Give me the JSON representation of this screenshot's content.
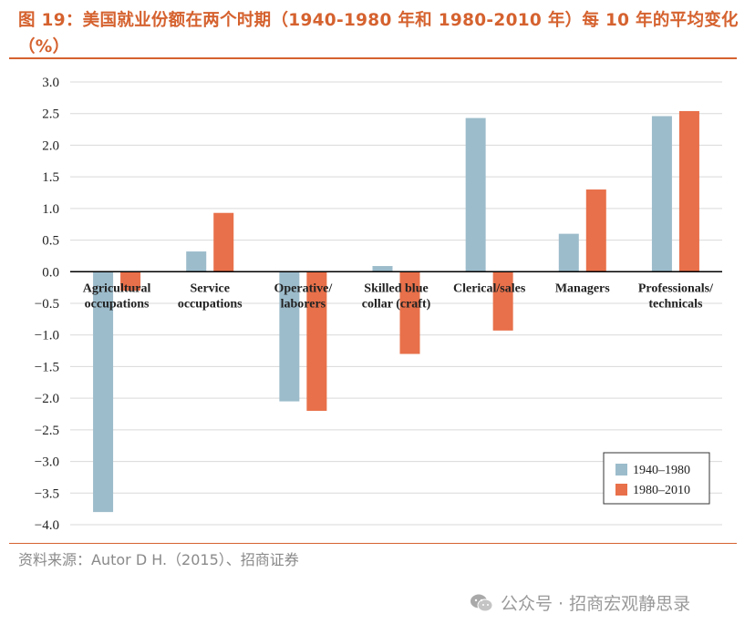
{
  "header": {
    "title": "图 19：美国就业份额在两个时期（1940-1980 年和 1980-2010 年）每 10 年的平均变化（%）"
  },
  "source": "资料来源：Autor D H.（2015）、招商证券",
  "footer": "公众号 · 招商宏观静思录",
  "colors": {
    "accent": "#d5622f",
    "series1": "#9cbccb",
    "series2": "#e8704a",
    "grid": "#d9d9d9"
  },
  "chart_data": {
    "type": "bar",
    "title": "",
    "xlabel": "",
    "ylabel": "",
    "ylim": [
      -4.0,
      3.0
    ],
    "yticks": [
      3.0,
      2.5,
      2.0,
      1.5,
      1.0,
      0.5,
      0.0,
      -0.5,
      -1.0,
      -1.5,
      -2.0,
      -2.5,
      -3.0,
      -3.5,
      -4.0
    ],
    "ytick_labels": [
      "3.0",
      "2.5",
      "2.0",
      "1.5",
      "1.0",
      "0.5",
      "0.0",
      "−0.5",
      "−1.0",
      "−1.5",
      "−2.0",
      "−2.5",
      "−3.0",
      "−3.5",
      "−4.0"
    ],
    "grid": true,
    "legend_position": "bottom-right",
    "categories": [
      [
        "Agricultural",
        "occupations"
      ],
      [
        "Service",
        "occupations"
      ],
      [
        "Operative/",
        "laborers"
      ],
      [
        "Skilled blue",
        "collar (craft)"
      ],
      [
        "Clerical/sales"
      ],
      [
        "Managers"
      ],
      [
        "Professionals/",
        "technicals"
      ]
    ],
    "series": [
      {
        "name": "1940–1980",
        "values": [
          -3.8,
          0.32,
          -2.05,
          0.09,
          2.43,
          0.6,
          2.46
        ]
      },
      {
        "name": "1980–2010",
        "values": [
          -0.3,
          0.93,
          -2.2,
          -1.3,
          -0.93,
          1.3,
          2.54
        ]
      }
    ]
  }
}
